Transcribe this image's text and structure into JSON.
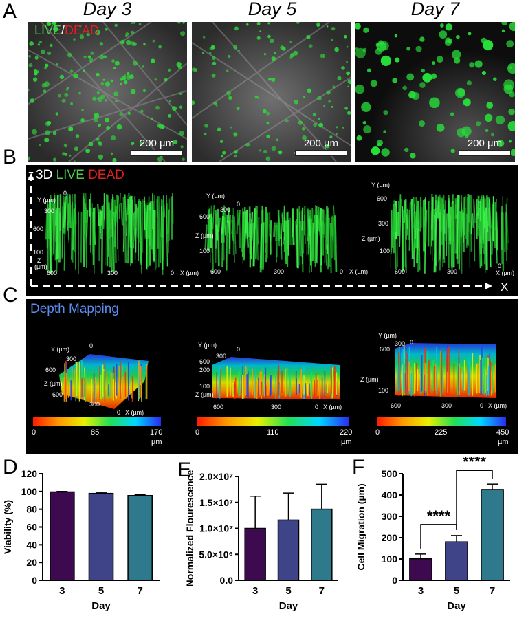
{
  "panel_letters": [
    "A",
    "B",
    "C",
    "D",
    "E",
    "F"
  ],
  "panel_a": {
    "day_titles": [
      "Day 3",
      "Day 5",
      "Day 7"
    ],
    "legend_live": "LIVE",
    "legend_sep": "/",
    "legend_dead": "DEAD",
    "scale_label": "200 µm"
  },
  "panel_b": {
    "legend_3d": "3D",
    "legend_live": "LIVE",
    "legend_dead": "DEAD",
    "z_label": "Z",
    "x_label": "X",
    "renders": [
      {
        "y_axis": "Y (µm)",
        "y0": "0",
        "y1": "300",
        "y2": "600",
        "z_axis": "Z",
        "z_unit": "(µm)",
        "z_val": "100",
        "x_axis": "X (µm)",
        "x0": "600",
        "x1": "300",
        "x2": "0"
      },
      {
        "y_axis": "Y (µm)",
        "y0": "0",
        "y1": "300",
        "y2": "600",
        "z_axis": "Z (µm)",
        "z_unit": "",
        "z_val": "100",
        "x_axis": "X (µm)",
        "x0": "600",
        "x1": "300",
        "x2": "0"
      },
      {
        "y_axis": "Y (µm)",
        "y0": "600",
        "y1": "300",
        "y2": "",
        "z_axis": "Z (µm)",
        "z_unit": "",
        "z_val": "100",
        "x_axis": "X (µm)",
        "x0": "600",
        "x1": "300",
        "x2": "0"
      }
    ]
  },
  "panel_c": {
    "title": "Depth Mapping",
    "renders": [
      {
        "y_axis": "Y (µm)",
        "y0": "0",
        "y1": "300",
        "y2": "600",
        "z_axis": "Z (µm)",
        "z_val": "",
        "x_axis": "X (µm)",
        "x0": "600",
        "x1": "300",
        "x2": "0"
      },
      {
        "y_axis": "Y (µm)",
        "y0": "0",
        "y1": "300",
        "y2": "600",
        "z_axis": "Z (µm)",
        "z_val": "100",
        "z_val2": "200",
        "x_axis": "X (µm)",
        "x0": "600",
        "x1": "300",
        "x2": "0"
      },
      {
        "y_axis": "Y (µm)",
        "y0": "0",
        "y1": "300",
        "y2": "600",
        "z_axis": "Z (µm)",
        "z_val": "100",
        "x_axis": "X (µm)",
        "x0": "600",
        "x1": "300",
        "x2": "0"
      }
    ],
    "colorbars": [
      {
        "min": "0",
        "mid": "85",
        "max": "170",
        "unit": "µm"
      },
      {
        "min": "0",
        "mid": "110",
        "max": "220",
        "unit": "µm"
      },
      {
        "min": "0",
        "mid": "225",
        "max": "450",
        "unit": "µm"
      }
    ]
  },
  "chart_data": [
    {
      "type": "bar",
      "panel": "D",
      "categories": [
        "3",
        "5",
        "7"
      ],
      "values": [
        99.5,
        97.8,
        95.4
      ],
      "errors": [
        0.6,
        1.2,
        0.9
      ],
      "colors": [
        "#3d0a50",
        "#3f4489",
        "#2e7a8c"
      ],
      "xlabel": "Day",
      "ylabel": "Viability (%)",
      "ylim": [
        0,
        120
      ],
      "yticks": [
        "0",
        "20",
        "40",
        "60",
        "80",
        "100",
        "120"
      ]
    },
    {
      "type": "bar",
      "panel": "E",
      "categories": [
        "3",
        "5",
        "7"
      ],
      "values": [
        10000000,
        11600000,
        13700000
      ],
      "errors": [
        6200000,
        5200000,
        4800000
      ],
      "colors": [
        "#3d0a50",
        "#3f4489",
        "#2e7a8c"
      ],
      "xlabel": "Day",
      "ylabel": "Normalized Flourescence",
      "ylim": [
        0,
        20000000
      ],
      "yticks": [
        "0.0",
        "5.0×10⁶",
        "1.0×10⁷",
        "1.5×10⁷",
        "2.0×10⁷"
      ]
    },
    {
      "type": "bar",
      "panel": "F",
      "categories": [
        "3",
        "5",
        "7"
      ],
      "values": [
        101,
        180,
        426
      ],
      "errors": [
        22,
        30,
        25
      ],
      "colors": [
        "#3d0a50",
        "#3f4489",
        "#2e7a8c"
      ],
      "xlabel": "Day",
      "ylabel": "Cell Migration (µm)",
      "ylim": [
        0,
        500
      ],
      "yticks": [
        "0",
        "100",
        "200",
        "300",
        "400",
        "500"
      ],
      "significance": [
        {
          "from": 0,
          "to": 1,
          "label": "****"
        },
        {
          "from": 1,
          "to": 2,
          "label": "****"
        }
      ]
    }
  ]
}
